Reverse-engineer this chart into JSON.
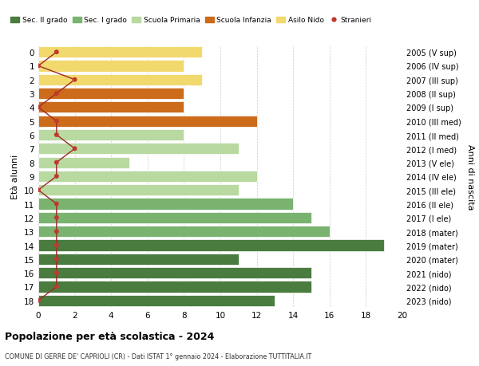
{
  "ages": [
    18,
    17,
    16,
    15,
    14,
    13,
    12,
    11,
    10,
    9,
    8,
    7,
    6,
    5,
    4,
    3,
    2,
    1,
    0
  ],
  "years": [
    "2005 (V sup)",
    "2006 (IV sup)",
    "2007 (III sup)",
    "2008 (II sup)",
    "2009 (I sup)",
    "2010 (III med)",
    "2011 (II med)",
    "2012 (I med)",
    "2013 (V ele)",
    "2014 (IV ele)",
    "2015 (III ele)",
    "2016 (II ele)",
    "2017 (I ele)",
    "2018 (mater)",
    "2019 (mater)",
    "2020 (mater)",
    "2021 (nido)",
    "2022 (nido)",
    "2023 (nido)"
  ],
  "values": [
    13,
    15,
    15,
    11,
    19,
    16,
    15,
    14,
    11,
    12,
    5,
    11,
    8,
    12,
    8,
    8,
    9,
    8,
    9
  ],
  "stranieri": [
    0,
    1,
    1,
    1,
    1,
    1,
    1,
    1,
    0,
    1,
    1,
    2,
    1,
    1,
    0,
    1,
    2,
    0,
    1
  ],
  "bar_colors": [
    "#4a7c3f",
    "#4a7c3f",
    "#4a7c3f",
    "#4a7c3f",
    "#4a7c3f",
    "#7ab370",
    "#7ab370",
    "#7ab370",
    "#b8d9a0",
    "#b8d9a0",
    "#b8d9a0",
    "#b8d9a0",
    "#b8d9a0",
    "#cc6b1a",
    "#cc6b1a",
    "#cc6b1a",
    "#f2d96e",
    "#f2d96e",
    "#f2d96e"
  ],
  "legend_colors": [
    "#4a7c3f",
    "#7ab370",
    "#b8d9a0",
    "#cc6b1a",
    "#f2d96e",
    "#c0392b"
  ],
  "legend_labels": [
    "Sec. II grado",
    "Sec. I grado",
    "Scuola Primaria",
    "Scuola Infanzia",
    "Asilo Nido",
    "Stranieri"
  ],
  "ylabel": "Età alunni",
  "ylabel_right": "Anni di nascita",
  "title": "Popolazione per età scolastica - 2024",
  "subtitle": "COMUNE DI GERRE DE' CAPRIOLI (CR) - Dati ISTAT 1° gennaio 2024 - Elaborazione TUTTITALIA.IT",
  "xlim": [
    0,
    20
  ],
  "xticks": [
    0,
    2,
    4,
    6,
    8,
    10,
    12,
    14,
    16,
    18,
    20
  ],
  "background_color": "#ffffff",
  "grid_color": "#cccccc",
  "stranieri_color": "#c0392b",
  "stranieri_line_color": "#a02828"
}
